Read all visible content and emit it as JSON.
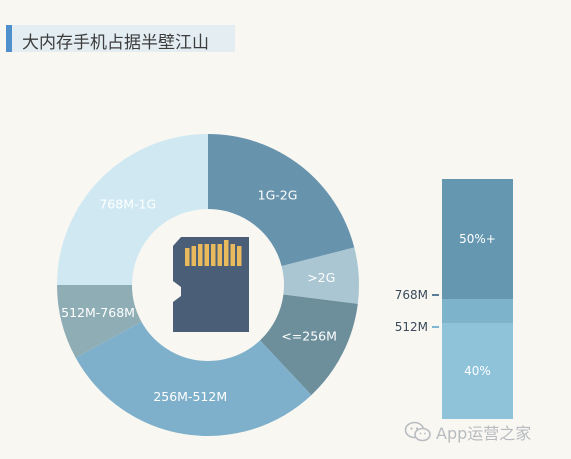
{
  "title": "大内存手机占据半壁江山",
  "chart_data": [
    {
      "type": "pie",
      "variant": "donut",
      "slices": [
        {
          "label": "1G-2G",
          "value": 21,
          "color": "#6893ad"
        },
        {
          "label": ">2G",
          "value": 6,
          "color": "#a9c6d2"
        },
        {
          "label": "<=256M",
          "value": 11,
          "color": "#6d8f9c"
        },
        {
          "label": "256M-512M",
          "value": 29,
          "color": "#7eb0cb"
        },
        {
          "label": "512M-768M",
          "value": 8,
          "color": "#8fadb5"
        },
        {
          "label": "768M-1G",
          "value": 25,
          "color": "#cfe8f2"
        }
      ],
      "center_icon": "sd-card-icon"
    },
    {
      "type": "bar",
      "variant": "stacked-single",
      "segments": [
        {
          "label": "50%+",
          "value": 50,
          "color": "#6598b0"
        },
        {
          "label": "",
          "value": 10,
          "color": "#7db3cb"
        },
        {
          "label": "40%",
          "value": 40,
          "color": "#8ec3da"
        }
      ],
      "boundary_labels": [
        "768M",
        "512M"
      ]
    }
  ],
  "watermark": "App运营之家",
  "watermark_icon": "wechat-icon"
}
